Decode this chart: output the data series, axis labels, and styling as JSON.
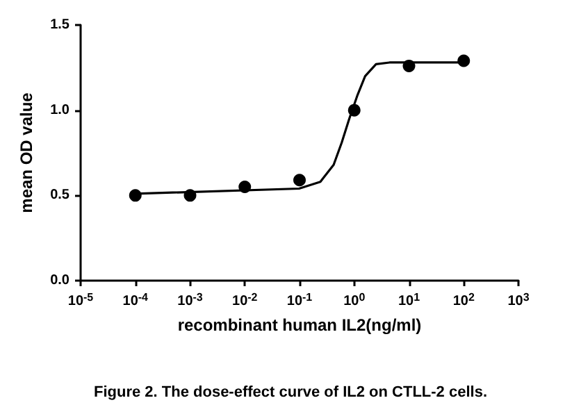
{
  "chart_data": {
    "type": "scatter",
    "xlabel": "recombinant human IL2(ng/ml)",
    "ylabel": "mean OD value",
    "log": "x",
    "grid": false,
    "marker": "circle",
    "xlim": [
      1e-05,
      1000
    ],
    "xticks": [
      {
        "value": 1e-05,
        "label": "10$^{-5}$"
      },
      {
        "value": 0.0001,
        "label": "10$^{-4}$"
      },
      {
        "value": 0.001,
        "label": "10$^{-3}$"
      },
      {
        "value": 0.01,
        "label": "10$^{-2}$"
      },
      {
        "value": 0.1,
        "label": "10$^{-1}$"
      },
      {
        "value": 1,
        "label": "10$^{0}$"
      },
      {
        "value": 10,
        "label": "10$^{1}$"
      },
      {
        "value": 100,
        "label": "10$^{2}$"
      },
      {
        "value": 1000,
        "label": "10$^{3}$"
      }
    ],
    "ylim": [
      0,
      1.5
    ],
    "yticks": [
      {
        "value": 0,
        "label": "0.0"
      },
      {
        "value": 0.5,
        "label": "0.5"
      },
      {
        "value": 1,
        "label": "1.0"
      },
      {
        "value": 1.5,
        "label": "1.5"
      }
    ],
    "series": [
      {
        "color": "#000000",
        "x": [
          0.0001,
          0.001,
          0.01,
          0.1,
          1,
          10,
          100
        ],
        "values": [
          0.5,
          0.5,
          0.55,
          0.59,
          1.0,
          1.26,
          1.29
        ]
      },
      {
        "type": "line",
        "color": "#000000",
        "marker": "none",
        "line_style": "solid",
        "x": [
          0.0001,
          0.098,
          0.24,
          0.42,
          0.59,
          0.81,
          1.15,
          1.58,
          2.5,
          4.4,
          100
        ],
        "values": [
          0.51,
          0.54,
          0.58,
          0.68,
          0.81,
          0.95,
          1.09,
          1.2,
          1.27,
          1.28,
          1.28
        ]
      }
    ],
    "annotations": [
      "Figure 2. The dose-effect curve of IL2 on CTLL-2 cells."
    ]
  }
}
